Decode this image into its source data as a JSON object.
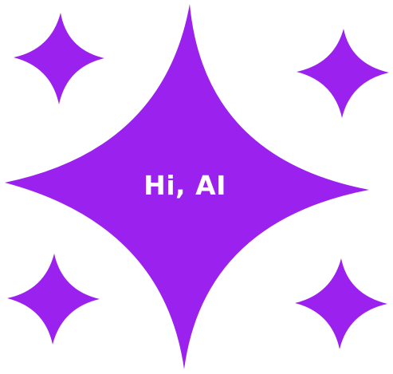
{
  "logo": {
    "text": "Hi, AI",
    "text_color": "#ffffff",
    "sparkle_color": "#9b22ee",
    "background": "#ffffff"
  }
}
